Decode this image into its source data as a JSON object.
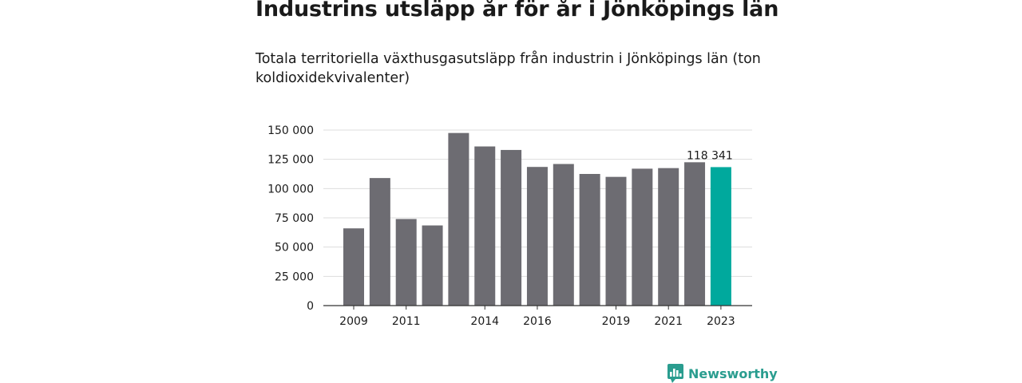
{
  "title": "Industrins utsläpp år för år i Jönköpings län",
  "subtitle": "Totala territoriella växthusgasutsläpp från industrin i Jönköpings län (ton koldioxidekvivalenter)",
  "brand": {
    "name": "Newsworthy",
    "icon": "bar-chart-speech-bubble-icon"
  },
  "colors": {
    "bar": "#6d6c72",
    "highlight": "#00a99d",
    "grid": "#dddddd",
    "axis": "#333333",
    "brand": "#2a9d8f"
  },
  "chart_data": {
    "type": "bar",
    "categories": [
      "2009",
      "2010",
      "2011",
      "2012",
      "2013",
      "2014",
      "2015",
      "2016",
      "2017",
      "2018",
      "2019",
      "2020",
      "2021",
      "2022",
      "2023"
    ],
    "values": [
      66000,
      109000,
      74000,
      68500,
      147500,
      136000,
      133000,
      118500,
      121000,
      112500,
      110000,
      117000,
      117500,
      122500,
      118341
    ],
    "highlight_index": 14,
    "x_tick_labels": [
      "2009",
      "",
      "2011",
      "",
      "",
      "2014",
      "",
      "2016",
      "",
      "",
      "2019",
      "",
      "2021",
      "",
      "2023"
    ],
    "y_ticks": [
      0,
      25000,
      50000,
      75000,
      100000,
      125000,
      150000
    ],
    "y_tick_labels": [
      "0",
      "25 000",
      "50 000",
      "75 000",
      "100 000",
      "125 000",
      "150 000"
    ],
    "ylim": [
      0,
      150000
    ],
    "data_labels": [
      {
        "index": 14,
        "text": "118 341"
      }
    ],
    "grid": true,
    "xlabel": "",
    "ylabel": ""
  }
}
